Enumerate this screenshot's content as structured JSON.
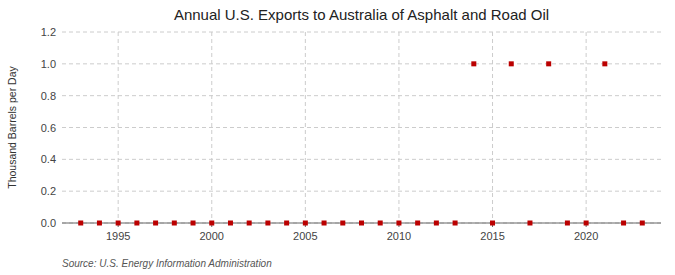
{
  "chart_data": {
    "type": "scatter",
    "title": "Annual U.S. Exports to Australia of Asphalt and Road Oil",
    "ylabel": "Thousand Barrels per Day",
    "annotations": [
      "Source: U.S. Energy Information Administration"
    ],
    "x": [
      1993,
      1994,
      1995,
      1996,
      1997,
      1998,
      1999,
      2000,
      2001,
      2002,
      2003,
      2004,
      2005,
      2006,
      2007,
      2008,
      2009,
      2010,
      2011,
      2012,
      2013,
      2014,
      2015,
      2016,
      2017,
      2018,
      2019,
      2020,
      2021,
      2022,
      2023
    ],
    "values": [
      0.0,
      0.0,
      0.0,
      0.0,
      0.0,
      0.0,
      0.0,
      0.0,
      0.0,
      0.0,
      0.0,
      0.0,
      0.0,
      0.0,
      0.0,
      0.0,
      0.0,
      0.0,
      0.0,
      0.0,
      0.0,
      1.0,
      0.0,
      1.0,
      0.0,
      1.0,
      0.0,
      0.0,
      1.0,
      0.0,
      0.0
    ],
    "color": "#bb0000",
    "marker": "square",
    "xlim": [
      1992,
      2024
    ],
    "xticks": [
      1995,
      2000,
      2005,
      2010,
      2015,
      2020
    ],
    "ylim": [
      0.0,
      1.2
    ],
    "yticks": [
      {
        "value": 0.0,
        "label": "0.0"
      },
      0.2,
      0.4,
      0.6,
      0.8,
      {
        "value": 1.0,
        "label": "1.0"
      },
      1.2
    ],
    "grid": true
  }
}
